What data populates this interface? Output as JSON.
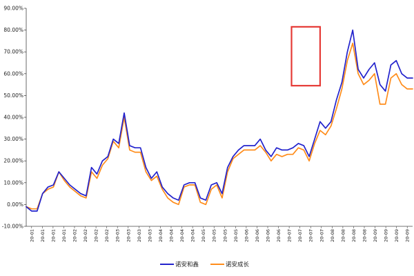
{
  "chart_data": {
    "type": "line",
    "title": "",
    "xlabel": "",
    "ylabel": "",
    "ylim": [
      -10,
      90
    ],
    "yticks": [
      "90.00%",
      "80.00%",
      "70.00%",
      "60.00%",
      "50.00%",
      "40.00%",
      "30.00%",
      "20.00%",
      "10.00%",
      "0.00%",
      "-10.00%"
    ],
    "yticks_values": [
      90,
      80,
      70,
      60,
      50,
      40,
      30,
      20,
      10,
      0,
      -10
    ],
    "xticks": [
      "20-01",
      "20-01",
      "20-01",
      "20-01",
      "20-02",
      "20-02",
      "20-02",
      "20-02",
      "20-03",
      "20-03",
      "20-03",
      "20-03",
      "20-04",
      "20-04",
      "20-04",
      "20-04",
      "20-05",
      "20-05",
      "20-05",
      "20-05",
      "20-06",
      "20-06",
      "20-06",
      "20-06",
      "20-07",
      "20-07",
      "20-07",
      "20-07",
      "20-08",
      "20-08",
      "20-08",
      "20-08",
      "20-09",
      "20-09",
      "20-09",
      "20-09"
    ],
    "grid": false,
    "legend_position": "bottom",
    "highlight_box": {
      "x_range": [
        97.5,
        108
      ],
      "y_range": [
        54.5,
        81.5
      ],
      "color": "#e53935"
    },
    "x": [
      0,
      2,
      4,
      6,
      8,
      10,
      12,
      14,
      16,
      18,
      20,
      22,
      24,
      26,
      28,
      30,
      32,
      34,
      36,
      38,
      40,
      42,
      44,
      46,
      48,
      50,
      52,
      54,
      56,
      58,
      60,
      62,
      64,
      66,
      68,
      70,
      72,
      74,
      76,
      78,
      80,
      82,
      84,
      86,
      88,
      90,
      92,
      94,
      96,
      98,
      100,
      102,
      104,
      106,
      108,
      110,
      112,
      114,
      116,
      118,
      120,
      122,
      124,
      126,
      128,
      130,
      132,
      134,
      136,
      138,
      140,
      142
    ],
    "series": [
      {
        "name": "诺安和鑫",
        "color": "#2222cc",
        "values": [
          -1,
          -3,
          -3,
          5,
          8,
          9,
          15,
          12,
          9,
          7,
          5,
          4,
          17,
          14,
          20,
          22,
          30,
          28,
          42,
          27,
          26,
          26,
          17,
          12,
          15,
          8,
          5,
          3,
          2,
          9,
          10,
          10,
          3,
          2,
          9,
          10,
          5,
          17,
          22,
          25,
          27,
          27,
          27,
          30,
          25,
          22,
          26,
          25,
          25,
          26,
          28,
          27,
          22,
          30,
          38,
          35,
          38,
          48,
          56,
          70,
          80,
          62,
          58,
          62,
          65,
          55,
          52,
          64,
          66,
          60,
          58,
          58
        ]
      },
      {
        "name": "诺安成长",
        "color": "#ff8c1a",
        "values": [
          -1,
          -2,
          -2,
          5,
          7,
          8,
          15,
          11,
          8,
          6,
          4,
          3,
          15,
          12,
          18,
          21,
          29,
          26,
          40,
          25,
          24,
          24,
          15,
          11,
          13,
          7,
          3,
          1,
          0,
          8,
          9,
          9,
          1,
          0,
          7,
          9,
          3,
          15,
          21,
          23,
          25,
          25,
          25,
          27,
          24,
          20,
          23,
          22,
          23,
          23,
          26,
          25,
          20,
          28,
          34,
          32,
          36,
          44,
          53,
          66,
          74,
          60,
          55,
          57,
          60,
          46,
          46,
          58,
          60,
          55,
          53,
          53
        ]
      }
    ]
  }
}
